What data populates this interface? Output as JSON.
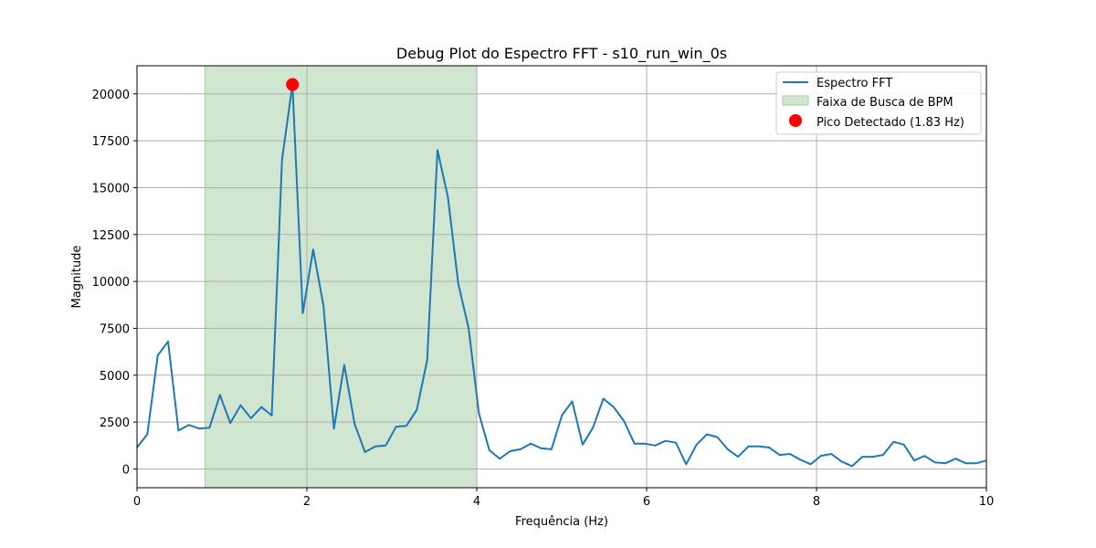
{
  "chart_data": {
    "type": "line",
    "title": "Debug Plot do Espectro FFT - s10_run_win_0s",
    "xlabel": "Frequência (Hz)",
    "ylabel": "Magnitude",
    "xlim": [
      0,
      10
    ],
    "ylim": [
      -1000,
      21500
    ],
    "xticks": [
      0,
      2,
      4,
      6,
      8,
      10
    ],
    "xtick_labels": [
      "0",
      "2",
      "4",
      "6",
      "8",
      "10"
    ],
    "yticks": [
      0,
      2500,
      5000,
      7500,
      10000,
      12500,
      15000,
      17500,
      20000
    ],
    "ytick_labels": [
      "0",
      "2500",
      "5000",
      "7500",
      "10000",
      "12500",
      "15000",
      "17500",
      "20000"
    ],
    "grid": true,
    "legend_position": "top-right",
    "band": {
      "label": "Faixa de Busca de BPM",
      "x_start": 0.8,
      "x_end": 4.0,
      "color": "#d0e6d0"
    },
    "peak": {
      "label": "Pico Detectado (1.83 Hz)",
      "x": 1.83,
      "y": 20500,
      "color": "#ff0000"
    },
    "series": [
      {
        "name": "Espectro FFT",
        "color": "#1f77b4",
        "x": [
          0,
          0.122,
          0.244,
          0.366,
          0.488,
          0.61,
          0.732,
          0.854,
          0.976,
          1.098,
          1.22,
          1.342,
          1.464,
          1.586,
          1.708,
          1.83,
          1.952,
          2.074,
          2.196,
          2.318,
          2.44,
          2.562,
          2.684,
          2.806,
          2.928,
          3.05,
          3.172,
          3.294,
          3.416,
          3.538,
          3.66,
          3.782,
          3.904,
          4.026,
          4.148,
          4.27,
          4.392,
          4.514,
          4.636,
          4.758,
          4.88,
          5.002,
          5.124,
          5.246,
          5.368,
          5.49,
          5.612,
          5.734,
          5.856,
          5.978,
          6.1,
          6.222,
          6.344,
          6.466,
          6.588,
          6.71,
          6.832,
          6.954,
          7.076,
          7.198,
          7.32,
          7.442,
          7.564,
          7.686,
          7.808,
          7.93,
          8.052,
          8.174,
          8.296,
          8.418,
          8.54,
          8.662,
          8.784,
          8.906,
          9.028,
          9.15,
          9.272,
          9.394,
          9.516,
          9.638,
          9.76,
          9.882,
          10.0
        ],
        "y": [
          1150,
          1850,
          6050,
          6800,
          2050,
          2350,
          2150,
          2200,
          3950,
          2450,
          3400,
          2700,
          3300,
          2850,
          16500,
          20500,
          8300,
          11700,
          8700,
          2150,
          5550,
          2400,
          900,
          1200,
          1250,
          2250,
          2300,
          3150,
          5800,
          17000,
          14500,
          9900,
          7500,
          2950,
          1000,
          550,
          950,
          1050,
          1350,
          1100,
          1050,
          2850,
          3600,
          1300,
          2200,
          3750,
          3300,
          2550,
          1350,
          1350,
          1250,
          1500,
          1400,
          250,
          1300,
          1850,
          1700,
          1050,
          650,
          1200,
          1200,
          1150,
          750,
          800,
          500,
          250,
          700,
          800,
          400,
          150,
          650,
          650,
          750,
          1450,
          1300,
          450,
          700,
          350,
          300,
          550,
          300,
          300,
          450
        ]
      }
    ]
  }
}
